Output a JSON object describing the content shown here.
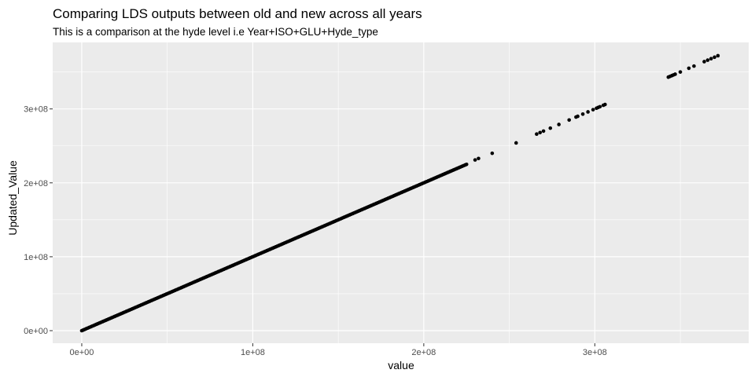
{
  "chart_data": {
    "type": "scatter",
    "title": "Comparing LDS outputs between old and new across all years",
    "subtitle": "This is a comparison at the hyde level i.e Year+ISO+GLU+Hyde_type",
    "xlabel": "value",
    "ylabel": "Updated_Value",
    "xlim": [
      -17000000,
      390000000
    ],
    "ylim": [
      -17000000,
      390000000
    ],
    "xticks": [
      0,
      100000000,
      200000000,
      300000000
    ],
    "yticks": [
      0,
      100000000,
      200000000,
      300000000
    ],
    "xtick_labels": [
      "0e+00",
      "1e+08",
      "2e+08",
      "3e+08"
    ],
    "ytick_labels": [
      "0e+00",
      "1e+08",
      "2e+08",
      "3e+08"
    ],
    "grid": true,
    "background": "#ebebeb",
    "point_color": "#000000",
    "dense_range": [
      0,
      225000000
    ],
    "points": [
      [
        230000000,
        231000000
      ],
      [
        232000000,
        233000000
      ],
      [
        240000000,
        240000000
      ],
      [
        254000000,
        254000000
      ],
      [
        266000000,
        266000000
      ],
      [
        268000000,
        268000000
      ],
      [
        270000000,
        270000000
      ],
      [
        274000000,
        274000000
      ],
      [
        279000000,
        279000000
      ],
      [
        285000000,
        285000000
      ],
      [
        289000000,
        289000000
      ],
      [
        290000000,
        290000000
      ],
      [
        293000000,
        293000000
      ],
      [
        296000000,
        296000000
      ],
      [
        299000000,
        299000000
      ],
      [
        301000000,
        301000000
      ],
      [
        302000000,
        302000000
      ],
      [
        303000000,
        303000000
      ],
      [
        305000000,
        305000000
      ],
      [
        306000000,
        306000000
      ],
      [
        343000000,
        343000000
      ],
      [
        344000000,
        344000000
      ],
      [
        345000000,
        345000000
      ],
      [
        346000000,
        346000000
      ],
      [
        347000000,
        347000000
      ],
      [
        350000000,
        350000000
      ],
      [
        355000000,
        355000000
      ],
      [
        358000000,
        358000000
      ],
      [
        364000000,
        364000000
      ],
      [
        366000000,
        366000000
      ],
      [
        368000000,
        368000000
      ],
      [
        370000000,
        370000000
      ],
      [
        372000000,
        372000000
      ]
    ]
  }
}
